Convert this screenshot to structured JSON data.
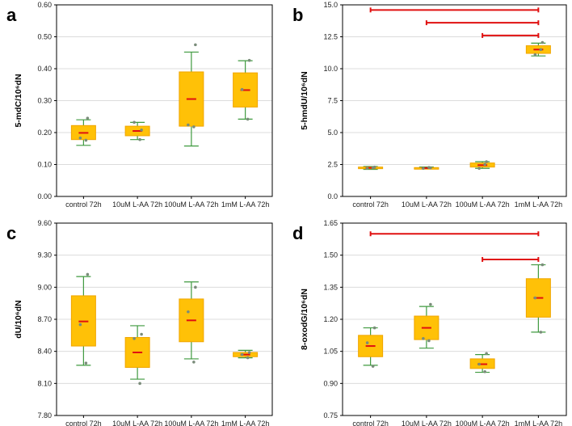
{
  "chart_data": [
    {
      "type": "box",
      "panel": "a",
      "ylabel": "5-mdC/10⁶dN",
      "ylim": [
        0.0,
        0.6
      ],
      "yticks": [
        "0.00",
        "0.10",
        "0.20",
        "0.30",
        "0.40",
        "0.50",
        "0.60"
      ],
      "ytick_values": [
        0.0,
        0.1,
        0.2,
        0.3,
        0.4,
        0.5,
        0.6
      ],
      "categories": [
        "control 72h",
        "10uM L-AA 72h",
        "100uM L-AA 72h",
        "1mM L-AA 72h"
      ],
      "boxes": [
        {
          "whisker_low": 0.16,
          "q1": 0.178,
          "median": 0.199,
          "q3": 0.222,
          "whisker_high": 0.24,
          "points": [
            0.245,
            0.183,
            0.176
          ]
        },
        {
          "whisker_low": 0.178,
          "q1": 0.19,
          "median": 0.205,
          "q3": 0.22,
          "whisker_high": 0.232,
          "points": [
            0.208,
            0.232,
            0.178
          ]
        },
        {
          "whisker_low": 0.158,
          "q1": 0.22,
          "median": 0.305,
          "q3": 0.39,
          "whisker_high": 0.452,
          "points": [
            0.475,
            0.224,
            0.218
          ]
        },
        {
          "whisker_low": 0.242,
          "q1": 0.28,
          "median": 0.333,
          "q3": 0.387,
          "whisker_high": 0.425,
          "points": [
            0.426,
            0.335,
            0.242
          ]
        }
      ],
      "significance": []
    },
    {
      "type": "box",
      "panel": "b",
      "ylabel": "5-hmdU/10⁶dN",
      "ylim": [
        0.0,
        15.0
      ],
      "yticks": [
        "0.0",
        "2.5",
        "5.0",
        "7.5",
        "10.0",
        "12.5",
        "15.0"
      ],
      "ytick_values": [
        0.0,
        2.5,
        5.0,
        7.5,
        10.0,
        12.5,
        15.0
      ],
      "categories": [
        "control 72h",
        "10uM L-AA 72h",
        "100uM L-AA 72h",
        "1mM L-AA 72h"
      ],
      "boxes": [
        {
          "whisker_low": 2.12,
          "q1": 2.18,
          "median": 2.24,
          "q3": 2.3,
          "whisker_high": 2.34,
          "points": [
            2.3,
            2.2,
            2.25
          ]
        },
        {
          "whisker_low": 2.16,
          "q1": 2.19,
          "median": 2.22,
          "q3": 2.26,
          "whisker_high": 2.3,
          "points": [
            2.24,
            2.2,
            2.27
          ]
        },
        {
          "whisker_low": 2.2,
          "q1": 2.3,
          "median": 2.45,
          "q3": 2.62,
          "whisker_high": 2.72,
          "points": [
            2.72,
            2.2,
            2.5
          ]
        },
        {
          "whisker_low": 11.0,
          "q1": 11.2,
          "median": 11.5,
          "q3": 11.8,
          "whisker_high": 12.0,
          "points": [
            12.05,
            11.1,
            11.5
          ]
        }
      ],
      "significance": [
        {
          "from": 0,
          "to": 3,
          "y": 14.6
        },
        {
          "from": 1,
          "to": 3,
          "y": 13.6
        },
        {
          "from": 2,
          "to": 3,
          "y": 12.6
        }
      ]
    },
    {
      "type": "box",
      "panel": "c",
      "ylabel": "dU/10⁶dN",
      "ylim": [
        7.8,
        9.6
      ],
      "yticks": [
        "7.80",
        "8.10",
        "8.40",
        "8.70",
        "9.00",
        "9.30",
        "9.60"
      ],
      "ytick_values": [
        7.8,
        8.1,
        8.4,
        8.7,
        9.0,
        9.3,
        9.6
      ],
      "categories": [
        "control 72h",
        "10uM L-AA 72h",
        "100uM L-AA 72h",
        "1mM L-AA 72h"
      ],
      "boxes": [
        {
          "whisker_low": 8.27,
          "q1": 8.45,
          "median": 8.68,
          "q3": 8.92,
          "whisker_high": 9.1,
          "points": [
            9.12,
            8.65,
            8.29
          ]
        },
        {
          "whisker_low": 8.14,
          "q1": 8.25,
          "median": 8.39,
          "q3": 8.53,
          "whisker_high": 8.64,
          "points": [
            8.56,
            8.52,
            8.1
          ]
        },
        {
          "whisker_low": 8.33,
          "q1": 8.49,
          "median": 8.69,
          "q3": 8.89,
          "whisker_high": 9.05,
          "points": [
            9.0,
            8.77,
            8.3
          ]
        },
        {
          "whisker_low": 8.34,
          "q1": 8.35,
          "median": 8.37,
          "q3": 8.39,
          "whisker_high": 8.41,
          "points": [
            8.39,
            8.37,
            8.34
          ]
        }
      ],
      "significance": []
    },
    {
      "type": "box",
      "panel": "d",
      "ylabel": "8-oxodG/10⁶dN",
      "ylim": [
        0.75,
        1.65
      ],
      "yticks": [
        "0.75",
        "0.90",
        "1.05",
        "1.20",
        "1.35",
        "1.50",
        "1.65"
      ],
      "ytick_values": [
        0.75,
        0.9,
        1.05,
        1.2,
        1.35,
        1.5,
        1.65
      ],
      "categories": [
        "control 72h",
        "10uM L-AA 72h",
        "100uM L-AA 72h",
        "1mM L-AA 72h"
      ],
      "boxes": [
        {
          "whisker_low": 0.985,
          "q1": 1.025,
          "median": 1.075,
          "q3": 1.125,
          "whisker_high": 1.16,
          "points": [
            1.16,
            1.09,
            0.98
          ]
        },
        {
          "whisker_low": 1.065,
          "q1": 1.105,
          "median": 1.16,
          "q3": 1.215,
          "whisker_high": 1.26,
          "points": [
            1.27,
            1.11,
            1.1
          ]
        },
        {
          "whisker_low": 0.952,
          "q1": 0.97,
          "median": 0.99,
          "q3": 1.015,
          "whisker_high": 1.035,
          "points": [
            1.04,
            0.99,
            0.955
          ]
        },
        {
          "whisker_low": 1.14,
          "q1": 1.21,
          "median": 1.3,
          "q3": 1.39,
          "whisker_high": 1.455,
          "points": [
            1.455,
            1.3,
            1.14
          ]
        }
      ],
      "significance": [
        {
          "from": 0,
          "to": 3,
          "y": 1.6
        },
        {
          "from": 2,
          "to": 3,
          "y": 1.48
        }
      ]
    }
  ]
}
